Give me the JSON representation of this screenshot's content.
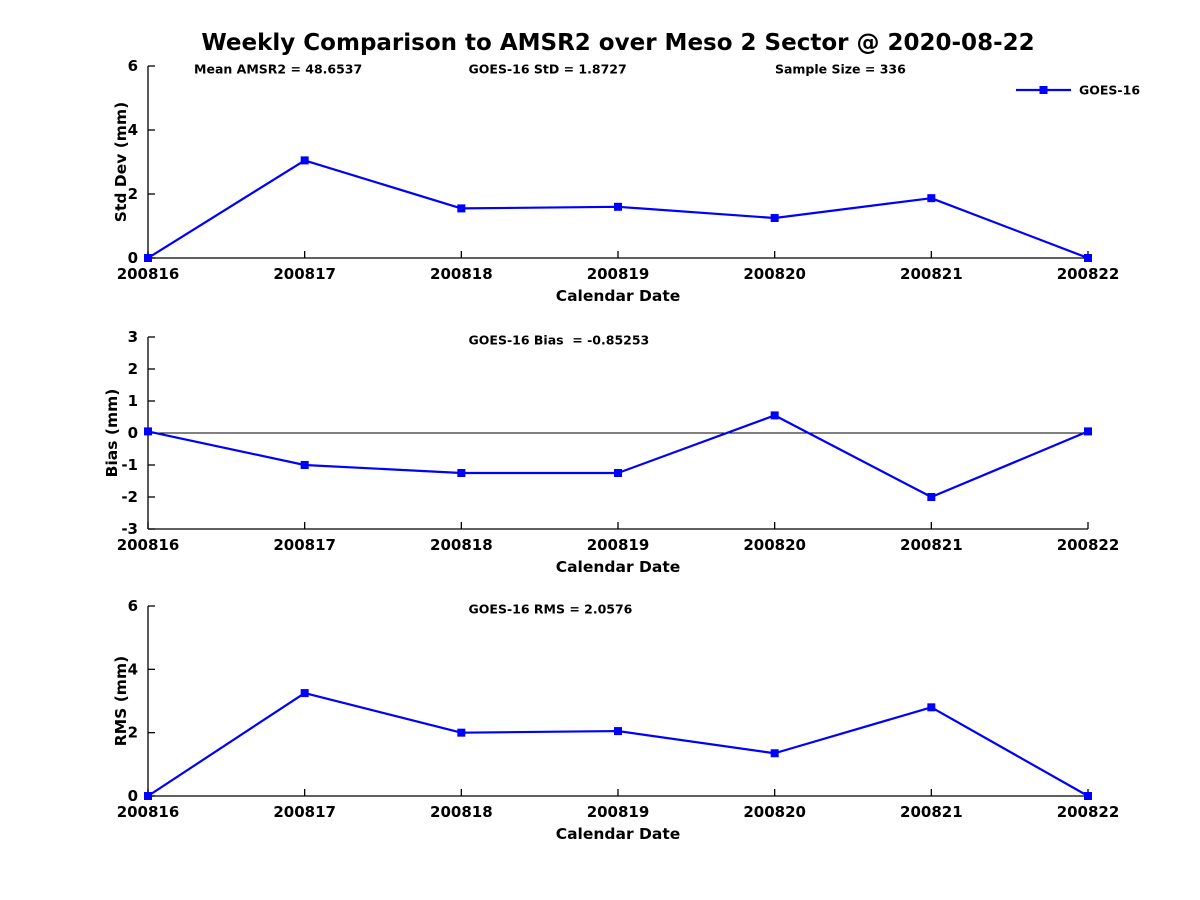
{
  "figure": {
    "title": "Weekly Comparison to AMSR2 over Meso 2 Sector @ 2020-08-22",
    "background": "#FFFFFF",
    "line_color": "#0000FF",
    "axis_color": "#000000"
  },
  "legend": {
    "label": "GOES-16",
    "position": "top-right"
  },
  "chart_data": [
    {
      "type": "line",
      "name": "std-dev",
      "series_label": "GOES-16",
      "x": [
        "200816",
        "200817",
        "200818",
        "200819",
        "200820",
        "200821",
        "200822"
      ],
      "values": [
        0,
        3.05,
        1.55,
        1.6,
        1.25,
        1.87,
        0
      ],
      "xlabel": "Calendar Date",
      "ylabel": "Std Dev (mm)",
      "ylim": [
        0,
        6
      ],
      "yticks": [
        0,
        2,
        4,
        6
      ],
      "zero_line": false,
      "grid": false,
      "annotations": [
        {
          "text": "Mean AMSR2 = 48.6537",
          "xfrac": 0.049
        },
        {
          "text": "GOES-16 StD = 1.8727",
          "xfrac": 0.341
        },
        {
          "text": "Sample Size = 336",
          "xfrac": 0.667
        }
      ]
    },
    {
      "type": "line",
      "name": "bias",
      "series_label": "GOES-16",
      "x": [
        "200816",
        "200817",
        "200818",
        "200819",
        "200820",
        "200821",
        "200822"
      ],
      "values": [
        0.05,
        -1.0,
        -1.25,
        -1.25,
        0.55,
        -2.0,
        0.05
      ],
      "xlabel": "Calendar Date",
      "ylabel": "Bias (mm)",
      "ylim": [
        -3,
        3
      ],
      "yticks": [
        -3,
        -2,
        -1,
        0,
        1,
        2,
        3
      ],
      "zero_line": true,
      "grid": false,
      "annotations": [
        {
          "text": "GOES-16 Bias  = -0.85253",
          "xfrac": 0.341
        }
      ]
    },
    {
      "type": "line",
      "name": "rms",
      "series_label": "GOES-16",
      "x": [
        "200816",
        "200817",
        "200818",
        "200819",
        "200820",
        "200821",
        "200822"
      ],
      "values": [
        0,
        3.25,
        2.0,
        2.05,
        1.35,
        2.8,
        0
      ],
      "xlabel": "Calendar Date",
      "ylabel": "RMS (mm)",
      "ylim": [
        0,
        6
      ],
      "yticks": [
        0,
        2,
        4,
        6
      ],
      "zero_line": false,
      "grid": false,
      "annotations": [
        {
          "text": "GOES-16 RMS = 2.0576",
          "xfrac": 0.341
        }
      ]
    }
  ]
}
